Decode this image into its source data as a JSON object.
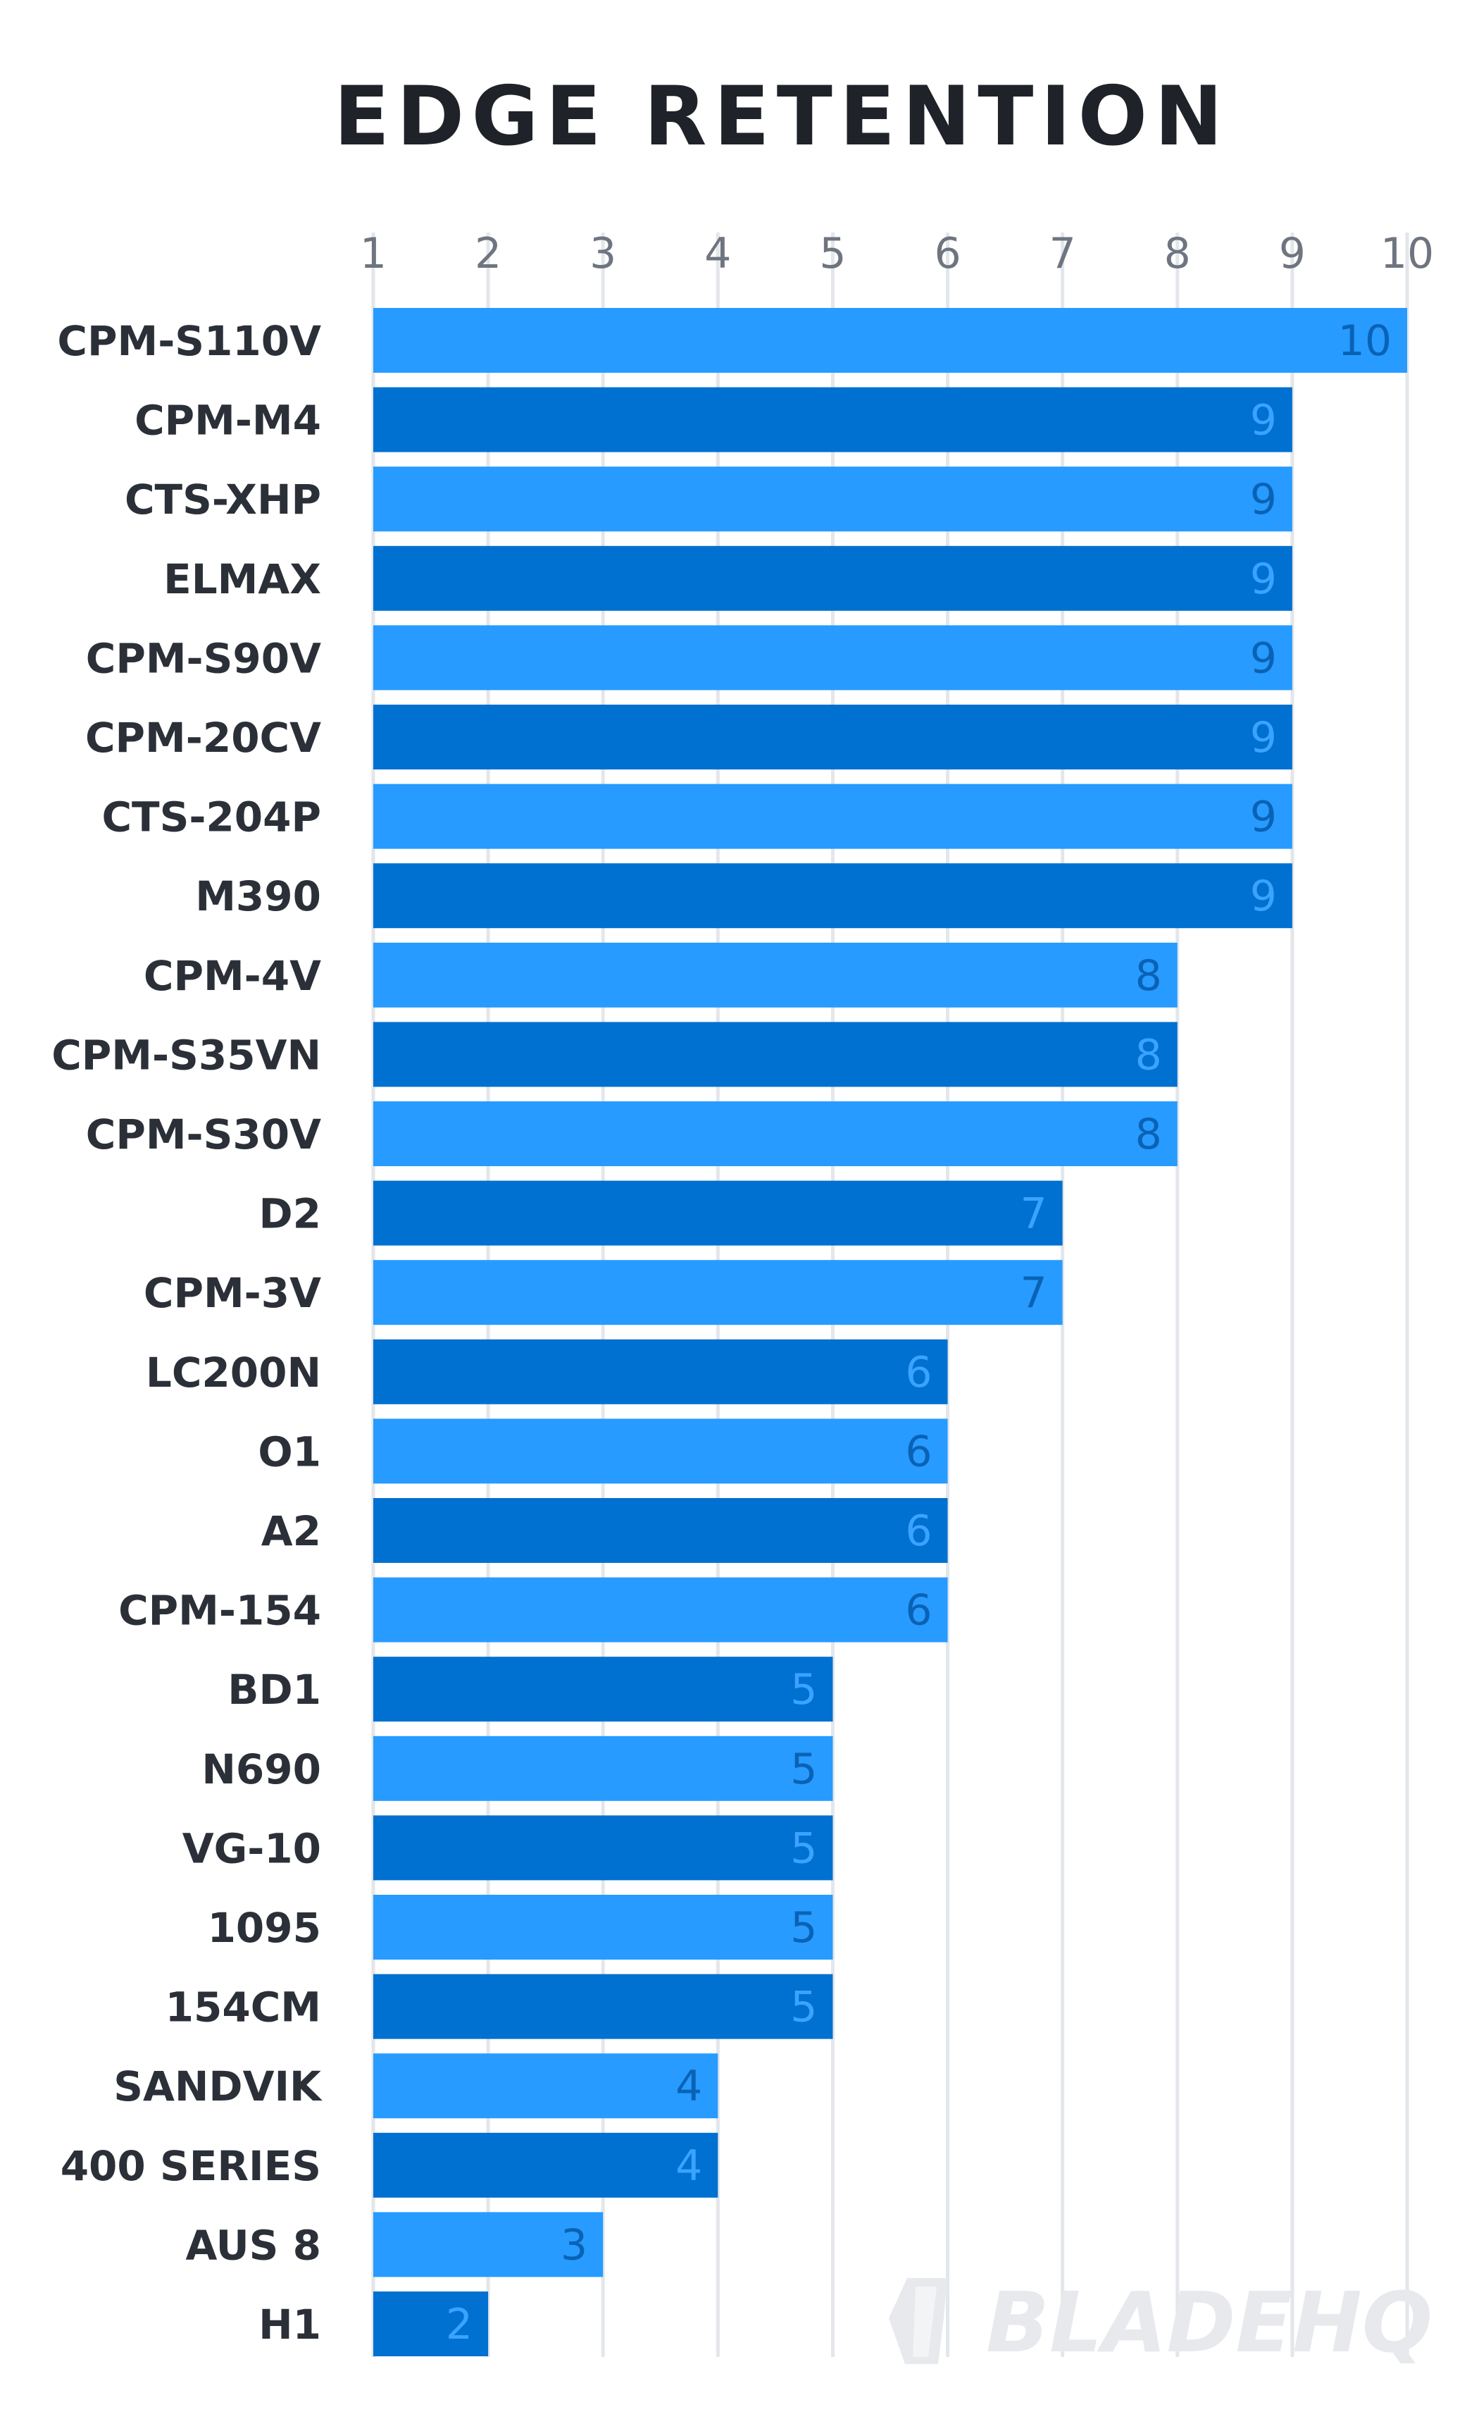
{
  "chart_data": {
    "type": "bar",
    "orientation": "horizontal",
    "title": "EDGE RETENTION",
    "xlim": [
      1,
      10
    ],
    "xticks": [
      1,
      2,
      3,
      4,
      5,
      6,
      7,
      8,
      9,
      10
    ],
    "axis_position": "top",
    "grid": true,
    "data_labels": true,
    "categories": [
      "CPM-S110V",
      "CPM-M4",
      "CTS-XHP",
      "ELMAX",
      "CPM-S90V",
      "CPM-20CV",
      "CTS-204P",
      "M390",
      "CPM-4V",
      "CPM-S35VN",
      "CPM-S30V",
      "D2",
      "CPM-3V",
      "LC200N",
      "O1",
      "A2",
      "CPM-154",
      "BD1",
      "N690",
      "VG-10",
      "1095",
      "154CM",
      "SANDVIK",
      "400 SERIES",
      "AUS 8",
      "H1"
    ],
    "values": [
      10,
      9,
      9,
      9,
      9,
      9,
      9,
      9,
      8,
      8,
      8,
      7,
      7,
      6,
      6,
      6,
      6,
      5,
      5,
      5,
      5,
      5,
      4,
      4,
      3,
      2
    ],
    "colors": {
      "bar_light": "#279bff",
      "bar_dark": "#0070d1",
      "label_on_light": "#0a62b5",
      "label_on_dark": "#3aa3ff"
    },
    "watermark": "BLADEHQ"
  }
}
